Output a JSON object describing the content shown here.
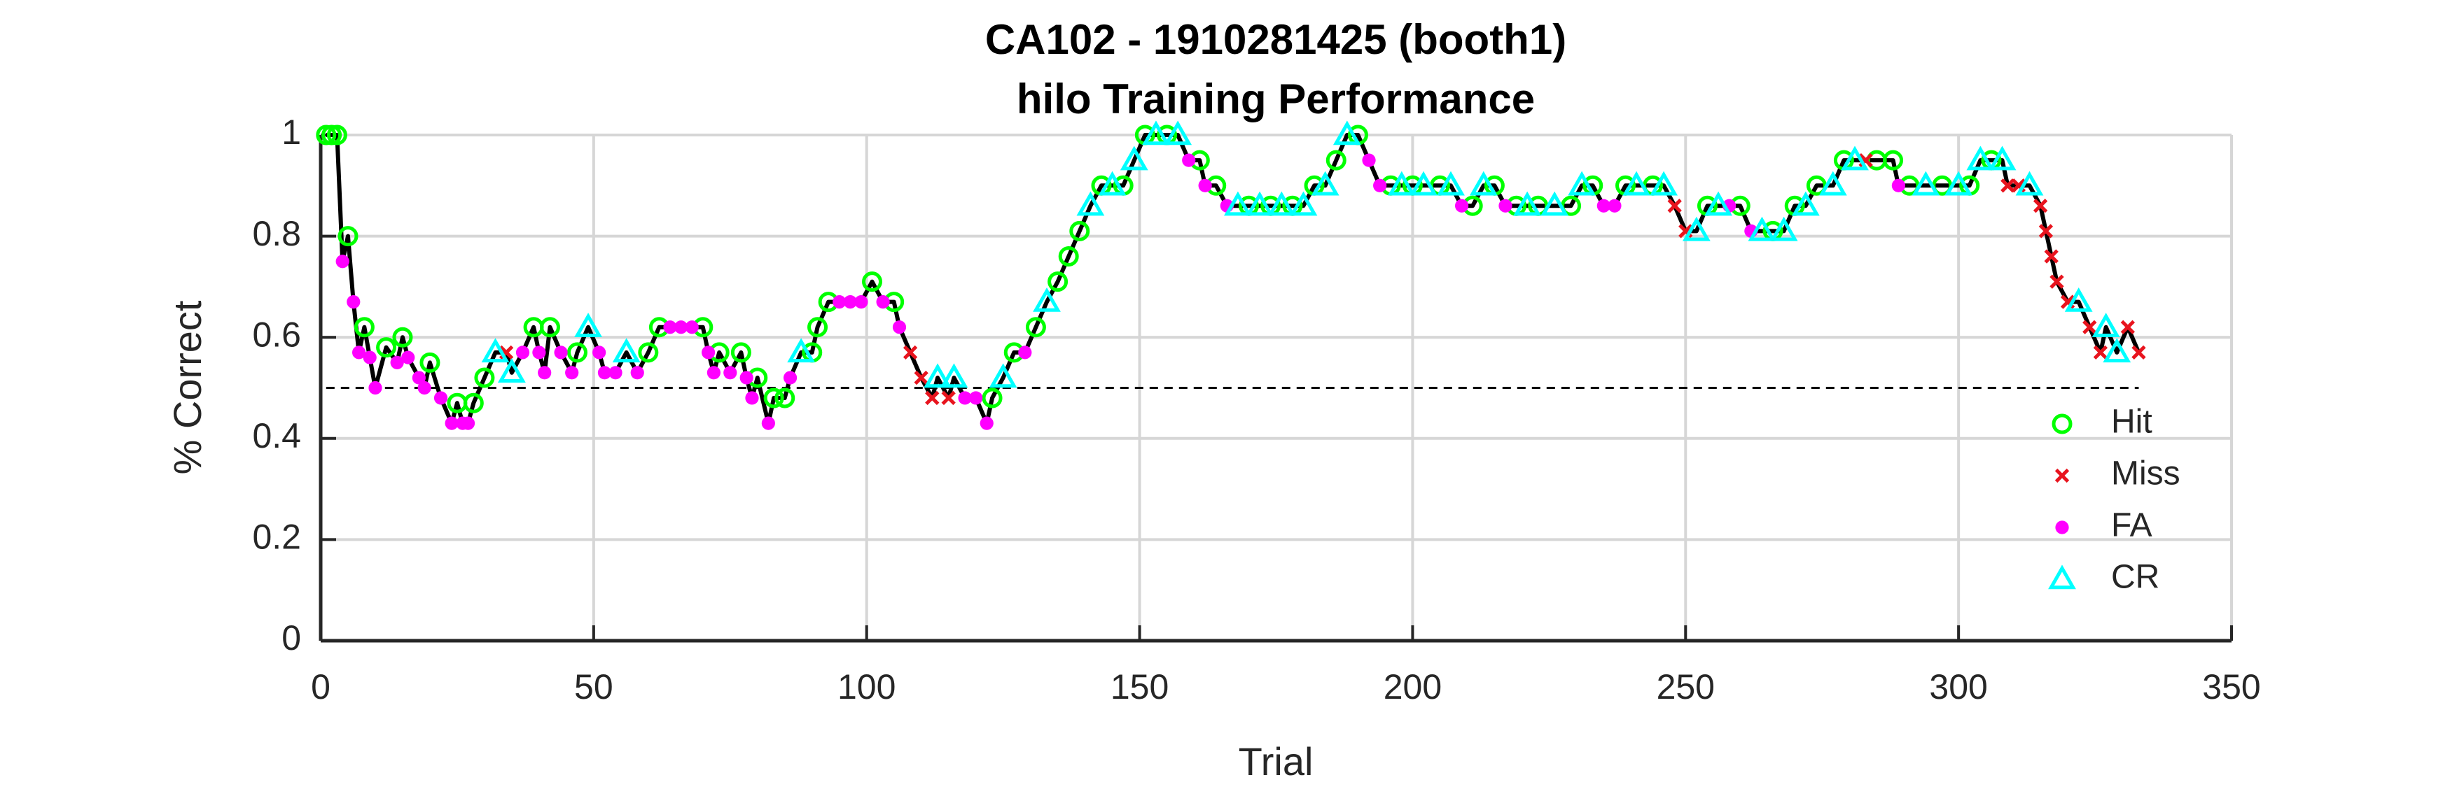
{
  "chart_data": {
    "type": "scatter",
    "title": "CA102 - 1910281425 (booth1)",
    "subtitle": "hilo Training Performance",
    "x_label": "Trial",
    "y_label": "% Correct",
    "xlim": [
      0,
      350
    ],
    "xticks": [
      0,
      50,
      100,
      150,
      200,
      250,
      300,
      350
    ],
    "ylim": [
      0,
      1
    ],
    "yticks": [
      0,
      0.2,
      0.4,
      0.6,
      0.8,
      1
    ],
    "grid": true,
    "legend": "lower right",
    "chance_line": {
      "y": 0.5,
      "color": "#000000"
    },
    "line": {
      "color": "#000000",
      "x": [
        1,
        2,
        3,
        4,
        5,
        6,
        7,
        8,
        9,
        10,
        12,
        14,
        15,
        16,
        18,
        19,
        20,
        22,
        24,
        25,
        26,
        27,
        28,
        30,
        32,
        34,
        35,
        37,
        39,
        40,
        41,
        42,
        44,
        46,
        47,
        49,
        51,
        52,
        54,
        56,
        58,
        60,
        62,
        64,
        66,
        68,
        70,
        71,
        72,
        73,
        75,
        77,
        78,
        79,
        80,
        82,
        83,
        85,
        86,
        88,
        90,
        91,
        93,
        95,
        97,
        99,
        101,
        103,
        105,
        106,
        108,
        110,
        112,
        113,
        115,
        116,
        118,
        120,
        122,
        123,
        125,
        127,
        129,
        131,
        133,
        135,
        137,
        139,
        141,
        143,
        145,
        147,
        149,
        151,
        153,
        155,
        157,
        159,
        161,
        162,
        164,
        166,
        168,
        170,
        172,
        174,
        176,
        178,
        180,
        182,
        184,
        186,
        188,
        190,
        192,
        194,
        196,
        198,
        200,
        202,
        205,
        207,
        209,
        211,
        213,
        215,
        217,
        219,
        221,
        223,
        226,
        229,
        231,
        233,
        235,
        237,
        239,
        241,
        244,
        246,
        248,
        250,
        252,
        254,
        256,
        258,
        260,
        262,
        264,
        266,
        268,
        270,
        272,
        274,
        277,
        279,
        281,
        283,
        285,
        288,
        289,
        291,
        294,
        297,
        300,
        302,
        304,
        306,
        308,
        309,
        311,
        313,
        315,
        316,
        317,
        318,
        320,
        322,
        324,
        326,
        327,
        329,
        331,
        333
      ],
      "values": [
        1,
        1,
        1,
        0.75,
        0.8,
        0.67,
        0.57,
        0.62,
        0.56,
        0.5,
        0.58,
        0.55,
        0.6,
        0.56,
        0.52,
        0.5,
        0.55,
        0.48,
        0.43,
        0.47,
        0.43,
        0.43,
        0.47,
        0.52,
        0.57,
        0.57,
        0.53,
        0.57,
        0.62,
        0.57,
        0.53,
        0.62,
        0.57,
        0.53,
        0.57,
        0.62,
        0.57,
        0.53,
        0.53,
        0.57,
        0.53,
        0.57,
        0.62,
        0.62,
        0.62,
        0.62,
        0.62,
        0.57,
        0.53,
        0.57,
        0.53,
        0.57,
        0.52,
        0.48,
        0.52,
        0.43,
        0.48,
        0.48,
        0.52,
        0.57,
        0.57,
        0.62,
        0.67,
        0.67,
        0.67,
        0.67,
        0.71,
        0.67,
        0.67,
        0.62,
        0.57,
        0.52,
        0.48,
        0.52,
        0.48,
        0.52,
        0.48,
        0.48,
        0.43,
        0.48,
        0.52,
        0.57,
        0.57,
        0.62,
        0.67,
        0.71,
        0.76,
        0.81,
        0.86,
        0.9,
        0.9,
        0.9,
        0.95,
        1,
        1,
        1,
        1,
        0.95,
        0.95,
        0.9,
        0.9,
        0.86,
        0.86,
        0.86,
        0.86,
        0.86,
        0.86,
        0.86,
        0.86,
        0.9,
        0.9,
        0.95,
        1,
        1,
        0.95,
        0.9,
        0.9,
        0.9,
        0.9,
        0.9,
        0.9,
        0.9,
        0.86,
        0.86,
        0.9,
        0.9,
        0.86,
        0.86,
        0.86,
        0.86,
        0.86,
        0.86,
        0.9,
        0.9,
        0.86,
        0.86,
        0.9,
        0.9,
        0.9,
        0.9,
        0.86,
        0.81,
        0.81,
        0.86,
        0.86,
        0.86,
        0.86,
        0.81,
        0.81,
        0.81,
        0.81,
        0.86,
        0.86,
        0.9,
        0.9,
        0.95,
        0.95,
        0.95,
        0.95,
        0.95,
        0.9,
        0.9,
        0.9,
        0.9,
        0.9,
        0.9,
        0.95,
        0.95,
        0.95,
        0.9,
        0.9,
        0.9,
        0.86,
        0.81,
        0.76,
        0.71,
        0.67,
        0.67,
        0.62,
        0.57,
        0.62,
        0.57,
        0.62,
        0.57
      ]
    },
    "series": [
      {
        "name": "Hit",
        "color": "#00ff00",
        "marker": "circle",
        "x": [
          1,
          2,
          3,
          5,
          8,
          12,
          15,
          20,
          25,
          28,
          30,
          39,
          42,
          47,
          60,
          62,
          70,
          73,
          77,
          80,
          83,
          85,
          90,
          91,
          93,
          101,
          105,
          123,
          127,
          131,
          135,
          137,
          139,
          143,
          147,
          151,
          155,
          161,
          164,
          170,
          174,
          178,
          182,
          186,
          190,
          196,
          200,
          205,
          211,
          215,
          219,
          223,
          229,
          233,
          239,
          244,
          254,
          260,
          266,
          270,
          274,
          279,
          285,
          288,
          291,
          297,
          302,
          306
        ],
        "values": [
          1,
          1,
          1,
          0.8,
          0.62,
          0.58,
          0.6,
          0.55,
          0.47,
          0.47,
          0.52,
          0.62,
          0.62,
          0.57,
          0.57,
          0.62,
          0.62,
          0.57,
          0.57,
          0.52,
          0.48,
          0.48,
          0.57,
          0.62,
          0.67,
          0.71,
          0.67,
          0.48,
          0.57,
          0.62,
          0.71,
          0.76,
          0.81,
          0.9,
          0.9,
          1,
          1,
          0.95,
          0.9,
          0.86,
          0.86,
          0.86,
          0.9,
          0.95,
          1,
          0.9,
          0.9,
          0.9,
          0.86,
          0.9,
          0.86,
          0.86,
          0.86,
          0.9,
          0.9,
          0.9,
          0.86,
          0.86,
          0.81,
          0.86,
          0.9,
          0.95,
          0.95,
          0.95,
          0.9,
          0.9,
          0.9,
          0.95
        ]
      },
      {
        "name": "Miss",
        "color": "#e8141e",
        "marker": "x",
        "x": [
          34,
          108,
          110,
          112,
          115,
          248,
          250,
          283,
          309,
          311,
          315,
          316,
          317,
          318,
          320,
          324,
          326,
          331,
          333
        ],
        "values": [
          0.57,
          0.57,
          0.52,
          0.48,
          0.48,
          0.86,
          0.81,
          0.95,
          0.9,
          0.9,
          0.86,
          0.81,
          0.76,
          0.71,
          0.67,
          0.62,
          0.57,
          0.62,
          0.57
        ]
      },
      {
        "name": "FA",
        "color": "#ff00ff",
        "marker": "dot",
        "x": [
          4,
          6,
          7,
          9,
          10,
          14,
          16,
          18,
          19,
          22,
          24,
          26,
          27,
          37,
          40,
          41,
          44,
          46,
          51,
          52,
          54,
          58,
          64,
          66,
          68,
          71,
          72,
          75,
          78,
          79,
          82,
          86,
          95,
          97,
          99,
          103,
          106,
          118,
          120,
          122,
          129,
          159,
          162,
          166,
          192,
          194,
          209,
          217,
          235,
          237,
          258,
          262,
          289
        ],
        "values": [
          0.75,
          0.67,
          0.57,
          0.56,
          0.5,
          0.55,
          0.56,
          0.52,
          0.5,
          0.48,
          0.43,
          0.43,
          0.43,
          0.57,
          0.57,
          0.53,
          0.57,
          0.53,
          0.57,
          0.53,
          0.53,
          0.53,
          0.62,
          0.62,
          0.62,
          0.57,
          0.53,
          0.53,
          0.52,
          0.48,
          0.43,
          0.52,
          0.67,
          0.67,
          0.67,
          0.67,
          0.62,
          0.48,
          0.48,
          0.43,
          0.57,
          0.95,
          0.9,
          0.86,
          0.95,
          0.9,
          0.86,
          0.86,
          0.86,
          0.86,
          0.86,
          0.81,
          0.9
        ]
      },
      {
        "name": "CR",
        "color": "#00ffff",
        "marker": "triangle",
        "x": [
          32,
          35,
          49,
          56,
          88,
          113,
          116,
          125,
          133,
          141,
          145,
          149,
          153,
          157,
          168,
          172,
          176,
          180,
          184,
          188,
          198,
          202,
          207,
          213,
          221,
          226,
          231,
          241,
          246,
          252,
          256,
          264,
          268,
          272,
          277,
          281,
          294,
          300,
          304,
          308,
          313,
          322,
          327,
          329
        ],
        "values": [
          0.57,
          0.53,
          0.62,
          0.57,
          0.57,
          0.52,
          0.52,
          0.52,
          0.67,
          0.86,
          0.9,
          0.95,
          1,
          1,
          0.86,
          0.86,
          0.86,
          0.86,
          0.9,
          1,
          0.9,
          0.9,
          0.9,
          0.9,
          0.86,
          0.86,
          0.9,
          0.9,
          0.9,
          0.81,
          0.86,
          0.81,
          0.81,
          0.86,
          0.9,
          0.95,
          0.9,
          0.9,
          0.95,
          0.95,
          0.9,
          0.67,
          0.62,
          0.57
        ]
      }
    ]
  }
}
